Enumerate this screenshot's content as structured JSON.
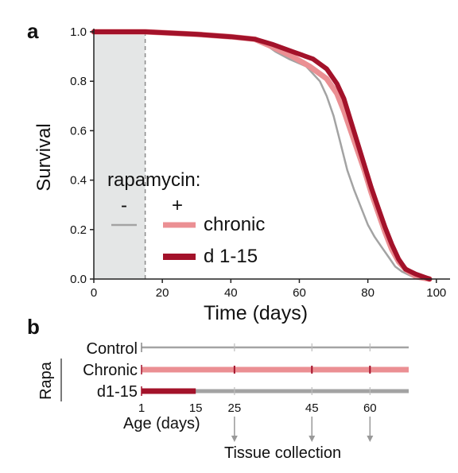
{
  "panels": {
    "a": {
      "letter": "a"
    },
    "b": {
      "letter": "b"
    }
  },
  "colors": {
    "control": "#a3a3a3",
    "chronic": "#eb8f93",
    "early": "#a3122a",
    "shade": "#e4e6e6",
    "axis": "#222222"
  },
  "chart_data": [
    {
      "type": "line",
      "xlabel": "Time (days)",
      "ylabel": "Survival",
      "xlim": [
        0,
        104
      ],
      "ylim": [
        0,
        1.0
      ],
      "x_ticks": [
        0,
        20,
        40,
        60,
        80,
        100
      ],
      "y_ticks": [
        0.0,
        0.2,
        0.4,
        0.6,
        0.8,
        1.0
      ],
      "y_tick_labels": [
        "0.0",
        "0.2",
        "0.4",
        "0.6",
        "0.8",
        "1.0"
      ],
      "shaded_region": [
        0,
        15
      ],
      "legend": {
        "title": "rapamycin:",
        "minus": "-",
        "plus": "+",
        "placement": "center-left",
        "entries": [
          "chronic",
          "d 1-15"
        ]
      },
      "series": [
        {
          "name": "-",
          "color": "#a3a3a3",
          "points": [
            [
              0,
              1.0
            ],
            [
              15,
              1.0
            ],
            [
              30,
              0.99
            ],
            [
              40,
              0.98
            ],
            [
              47,
              0.97
            ],
            [
              50,
              0.95
            ],
            [
              53,
              0.92
            ],
            [
              57,
              0.89
            ],
            [
              62,
              0.86
            ],
            [
              66,
              0.8
            ],
            [
              68,
              0.74
            ],
            [
              70,
              0.66
            ],
            [
              72,
              0.55
            ],
            [
              74,
              0.44
            ],
            [
              76,
              0.36
            ],
            [
              78,
              0.29
            ],
            [
              80,
              0.22
            ],
            [
              82,
              0.17
            ],
            [
              84,
              0.13
            ],
            [
              86,
              0.09
            ],
            [
              88,
              0.05
            ],
            [
              90,
              0.03
            ],
            [
              93,
              0.01
            ],
            [
              97,
              0.0
            ]
          ]
        },
        {
          "name": "chronic",
          "color": "#eb8f93",
          "points": [
            [
              0,
              1.0
            ],
            [
              15,
              1.0
            ],
            [
              30,
              0.99
            ],
            [
              40,
              0.98
            ],
            [
              47,
              0.97
            ],
            [
              52,
              0.94
            ],
            [
              58,
              0.9
            ],
            [
              63,
              0.86
            ],
            [
              68,
              0.81
            ],
            [
              71,
              0.75
            ],
            [
              73,
              0.68
            ],
            [
              75,
              0.6
            ],
            [
              77,
              0.52
            ],
            [
              79,
              0.44
            ],
            [
              81,
              0.35
            ],
            [
              83,
              0.27
            ],
            [
              85,
              0.19
            ],
            [
              87,
              0.12
            ],
            [
              89,
              0.07
            ],
            [
              91,
              0.04
            ],
            [
              94,
              0.01
            ],
            [
              98,
              0.0
            ]
          ]
        },
        {
          "name": "d 1-15",
          "color": "#a3122a",
          "points": [
            [
              0,
              1.0
            ],
            [
              15,
              1.0
            ],
            [
              30,
              0.99
            ],
            [
              40,
              0.98
            ],
            [
              47,
              0.97
            ],
            [
              52,
              0.95
            ],
            [
              58,
              0.92
            ],
            [
              64,
              0.89
            ],
            [
              68,
              0.85
            ],
            [
              71,
              0.79
            ],
            [
              73,
              0.73
            ],
            [
              75,
              0.64
            ],
            [
              77,
              0.55
            ],
            [
              79,
              0.46
            ],
            [
              81,
              0.37
            ],
            [
              83,
              0.29
            ],
            [
              85,
              0.21
            ],
            [
              87,
              0.14
            ],
            [
              89,
              0.08
            ],
            [
              91,
              0.04
            ],
            [
              94,
              0.02
            ],
            [
              98,
              0.0
            ]
          ]
        }
      ]
    },
    {
      "type": "timeline",
      "xlabel": "Age (days)",
      "ticks": [
        "1",
        "15",
        "25",
        "45",
        "60"
      ],
      "tick_values": [
        1,
        15,
        25,
        45,
        60
      ],
      "x_end": 70,
      "group_label": "Rapa",
      "annotation": "Tissue collection",
      "collection_days": [
        25,
        45,
        60
      ],
      "rows": [
        {
          "label": "Control",
          "color": "#a3a3a3",
          "bar": [
            1,
            70
          ],
          "highlight": null
        },
        {
          "label": "Chronic",
          "color": "#eb8f93",
          "bar": [
            1,
            70
          ],
          "highlight": null
        },
        {
          "label": "d1-15",
          "color": "#a3a3a3",
          "bar": [
            1,
            70
          ],
          "highlight": [
            1,
            15
          ],
          "highlight_color": "#a3122a"
        }
      ]
    }
  ]
}
